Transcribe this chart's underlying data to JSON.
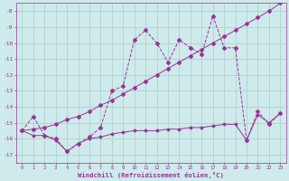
{
  "xlabel": "Windchill (Refroidissement éolien,°C)",
  "background_color": "#ceeaea",
  "grid_color": "#aacccc",
  "line_color": "#993399",
  "x_data": [
    0,
    1,
    2,
    3,
    4,
    5,
    6,
    7,
    8,
    9,
    10,
    11,
    12,
    13,
    14,
    15,
    16,
    17,
    18,
    19,
    20,
    21,
    22,
    23
  ],
  "line1_jagged": [
    -15.5,
    -14.6,
    -15.8,
    -16.0,
    -16.8,
    -16.3,
    -15.9,
    -15.3,
    -13.0,
    -12.7,
    -9.8,
    -9.2,
    -10.0,
    -11.2,
    -9.8,
    -10.3,
    -10.7,
    -8.3,
    -10.3,
    -10.3,
    -16.1,
    -14.3,
    -15.1,
    -14.4
  ],
  "line2_flat": [
    -15.5,
    -15.8,
    -15.8,
    -16.1,
    -16.8,
    -16.3,
    -16.0,
    -15.9,
    -15.7,
    -15.6,
    -15.5,
    -15.5,
    -15.5,
    -15.4,
    -15.4,
    -15.3,
    -15.3,
    -15.2,
    -15.1,
    -15.1,
    -16.1,
    -14.5,
    -15.0,
    -14.4
  ],
  "line3_trend": [
    -15.5,
    -15.4,
    -15.3,
    -15.1,
    -14.8,
    -14.6,
    -14.3,
    -13.9,
    -13.6,
    -13.2,
    -12.8,
    -12.4,
    -12.0,
    -11.6,
    -11.2,
    -10.8,
    -10.4,
    -10.0,
    -9.6,
    -9.2,
    -8.8,
    -8.4,
    -8.0,
    -7.5
  ],
  "ylim": [
    -17.5,
    -7.5
  ],
  "xlim": [
    -0.5,
    23.5
  ],
  "yticks": [
    -17,
    -16,
    -15,
    -14,
    -13,
    -12,
    -11,
    -10,
    -9,
    -8
  ],
  "xticks": [
    0,
    1,
    2,
    3,
    4,
    5,
    6,
    7,
    8,
    9,
    10,
    11,
    12,
    13,
    14,
    15,
    16,
    17,
    18,
    19,
    20,
    21,
    22,
    23
  ]
}
